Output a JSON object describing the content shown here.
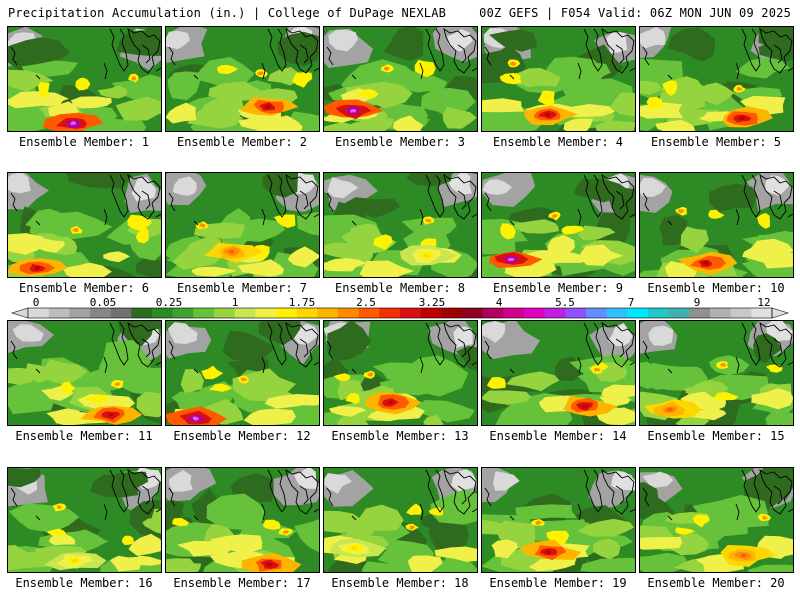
{
  "header": {
    "left": "Precipitation Accumulation (in.) | College of DuPage NEXLAB",
    "right": "00Z GEFS | F054 Valid: 06Z MON JUN 09 2025"
  },
  "colorbar": {
    "labels": [
      "0",
      "0.05",
      "0.25",
      "1",
      "1.75",
      "2.5",
      "3.25",
      "4",
      "5.5",
      "7",
      "9",
      "12"
    ],
    "colors": [
      "#d9d9d9",
      "#bdbdbd",
      "#a3a3a3",
      "#878787",
      "#707070",
      "#2f6b1f",
      "#2e8a24",
      "#3da52d",
      "#66c23a",
      "#96d43f",
      "#c8e650",
      "#f0f04a",
      "#fff200",
      "#ffd700",
      "#ffb400",
      "#ff8c00",
      "#ff5a00",
      "#f03000",
      "#d81010",
      "#c00000",
      "#a00000",
      "#8c0020",
      "#b00060",
      "#d0008c",
      "#e000c0",
      "#c020e0",
      "#9050ff",
      "#6090ff",
      "#30c0ff",
      "#00e8ff",
      "#20c8c8",
      "#40b0b0",
      "#909090",
      "#b0b0b0",
      "#c8c8c8",
      "#e0e0e0"
    ]
  },
  "members": [
    {
      "label": "Ensemble Member: 1",
      "max": "magenta"
    },
    {
      "label": "Ensemble Member: 2",
      "max": "red"
    },
    {
      "label": "Ensemble Member: 3",
      "max": "magenta"
    },
    {
      "label": "Ensemble Member: 4",
      "max": "red"
    },
    {
      "label": "Ensemble Member: 5",
      "max": "red"
    },
    {
      "label": "Ensemble Member: 6",
      "max": "red"
    },
    {
      "label": "Ensemble Member: 7",
      "max": "orange"
    },
    {
      "label": "Ensemble Member: 8",
      "max": "yellow"
    },
    {
      "label": "Ensemble Member: 9",
      "max": "magenta"
    },
    {
      "label": "Ensemble Member: 10",
      "max": "red"
    },
    {
      "label": "Ensemble Member: 11",
      "max": "red"
    },
    {
      "label": "Ensemble Member: 12",
      "max": "magenta"
    },
    {
      "label": "Ensemble Member: 13",
      "max": "red"
    },
    {
      "label": "Ensemble Member: 14",
      "max": "red"
    },
    {
      "label": "Ensemble Member: 15",
      "max": "orange"
    },
    {
      "label": "Ensemble Member: 16",
      "max": "yellow"
    },
    {
      "label": "Ensemble Member: 17",
      "max": "red"
    },
    {
      "label": "Ensemble Member: 18",
      "max": "yellow"
    },
    {
      "label": "Ensemble Member: 19",
      "max": "red"
    },
    {
      "label": "Ensemble Member: 20",
      "max": "orange"
    }
  ]
}
